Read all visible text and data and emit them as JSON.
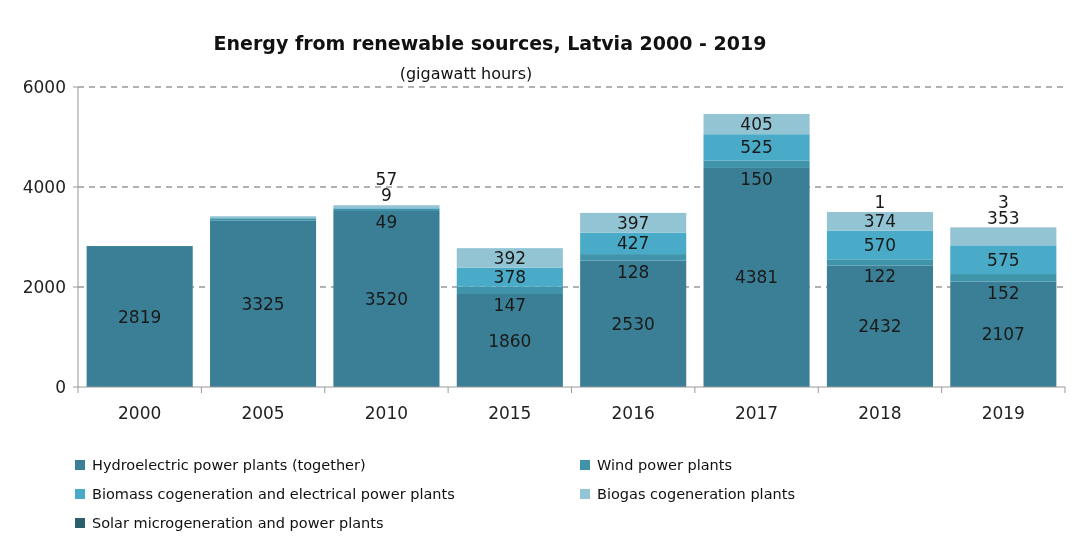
{
  "chart_data": {
    "type": "bar",
    "title": "Energy from renewable sources, Latvia 2000 - 2019",
    "subtitle": "(gigawatt hours)",
    "categories": [
      "2000",
      "2005",
      "2010",
      "2015",
      "2016",
      "2017",
      "2018",
      "2019"
    ],
    "stacked": true,
    "ylim": [
      0,
      6000
    ],
    "yticks": [
      0,
      2000,
      4000,
      6000
    ],
    "grid": "y",
    "legend": "bottom",
    "series": [
      {
        "name": "Hydroelectric power plants (together)",
        "color": "#3a7f95",
        "values": [
          2819,
          3325,
          3520,
          1860,
          2530,
          4381,
          2432,
          2107
        ],
        "value_labels": [
          "2819",
          "3325",
          "3520",
          "1860",
          "2530",
          "4381",
          "2432",
          "2107"
        ]
      },
      {
        "name": "Wind power plants",
        "color": "#3f94a9",
        "values": [
          null,
          50,
          49,
          147,
          128,
          150,
          122,
          152
        ],
        "value_labels": [
          null,
          null,
          "49",
          "147",
          "128",
          "150",
          "122",
          "152"
        ]
      },
      {
        "name": "Biomass cogeneration and electrical power plants",
        "color": "#49abc7",
        "values": [
          null,
          null,
          9,
          378,
          427,
          525,
          570,
          575
        ],
        "value_labels": [
          null,
          null,
          "9",
          "378",
          "427",
          "525",
          "570",
          "575"
        ]
      },
      {
        "name": "Biogas cogeneration plants",
        "color": "#93c4d4",
        "values": [
          null,
          40,
          57,
          392,
          397,
          405,
          374,
          353
        ],
        "value_labels": [
          null,
          null,
          "57",
          "392",
          "397",
          "405",
          "374",
          "353"
        ]
      },
      {
        "name": "Solar microgeneration and power plants",
        "color": "#2b5f6e",
        "values": [
          null,
          null,
          null,
          null,
          null,
          null,
          1,
          3
        ],
        "value_labels": [
          null,
          null,
          null,
          null,
          null,
          null,
          "1",
          "3"
        ]
      }
    ]
  }
}
